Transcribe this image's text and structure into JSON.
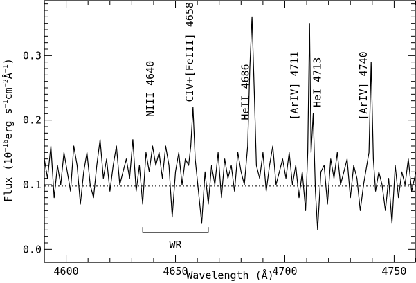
{
  "chart_data": {
    "type": "line",
    "xlabel": "Wavelength (Å)",
    "ylabel": {
      "main": "Flux (10",
      "exp1": "−16",
      "mid1": "erg s",
      "exp2": "−1",
      "mid2": "cm",
      "exp3": "−2",
      "mid3": "Å",
      "exp4": "−1",
      "end": ")"
    },
    "xlim": [
      4590,
      4760
    ],
    "ylim": [
      -0.02,
      0.385
    ],
    "x_ticks": [
      4600,
      4650,
      4700,
      4750
    ],
    "x_tick_labels": [
      "4600",
      "4650",
      "4700",
      "4750"
    ],
    "y_ticks": [
      0.0,
      0.1,
      0.2,
      0.3
    ],
    "y_tick_labels": [
      "0.0",
      "0.1",
      "0.2",
      "0.3"
    ],
    "continuum_level": 0.098,
    "grid": false,
    "series": [
      {
        "x": [
          4590,
          4591.5,
          4593,
          4594.5,
          4596,
          4597.5,
          4599,
          4600.5,
          4602,
          4603.5,
          4605,
          4606.5,
          4608,
          4609.5,
          4611,
          4612.5,
          4614,
          4615.5,
          4617,
          4618.5,
          4620,
          4621.5,
          4623,
          4624.5,
          4626,
          4627.5,
          4629,
          4630.5,
          4632,
          4633.5,
          4635,
          4636.5,
          4638,
          4639.5,
          4641,
          4642.5,
          4644,
          4645.5,
          4647,
          4648.5,
          4650,
          4651.5,
          4653,
          4654.5,
          4656,
          4657,
          4658,
          4659,
          4660.5,
          4662,
          4663.5,
          4665,
          4666.5,
          4668,
          4669.5,
          4671,
          4672.5,
          4674,
          4675.5,
          4677,
          4678.5,
          4680,
          4681.5,
          4683,
          4684,
          4685,
          4686,
          4687,
          4688.5,
          4690,
          4691.5,
          4693,
          4694.5,
          4696,
          4697.5,
          4699,
          4700.5,
          4702,
          4703.5,
          4705,
          4706.5,
          4708,
          4709.5,
          4710.5,
          4711.3,
          4712,
          4713,
          4714,
          4715,
          4716.5,
          4718,
          4719.5,
          4721,
          4722.5,
          4724,
          4725.5,
          4727,
          4728.5,
          4730,
          4731.5,
          4733,
          4734.5,
          4736,
          4737.5,
          4738.5,
          4739.5,
          4740.5,
          4741.5,
          4743,
          4744.5,
          4746,
          4747.5,
          4749,
          4750.5,
          4752,
          4753.5,
          4755,
          4756.5,
          4758,
          4760
        ],
        "y": [
          0.14,
          0.11,
          0.16,
          0.08,
          0.13,
          0.1,
          0.15,
          0.12,
          0.09,
          0.16,
          0.13,
          0.07,
          0.12,
          0.15,
          0.1,
          0.08,
          0.13,
          0.17,
          0.11,
          0.14,
          0.09,
          0.13,
          0.16,
          0.1,
          0.12,
          0.14,
          0.11,
          0.17,
          0.09,
          0.13,
          0.07,
          0.15,
          0.12,
          0.16,
          0.13,
          0.15,
          0.11,
          0.16,
          0.13,
          0.05,
          0.12,
          0.15,
          0.1,
          0.14,
          0.13,
          0.16,
          0.22,
          0.14,
          0.09,
          0.04,
          0.12,
          0.07,
          0.13,
          0.1,
          0.15,
          0.08,
          0.14,
          0.11,
          0.13,
          0.09,
          0.15,
          0.12,
          0.1,
          0.16,
          0.28,
          0.36,
          0.25,
          0.13,
          0.11,
          0.15,
          0.09,
          0.13,
          0.16,
          0.1,
          0.12,
          0.14,
          0.11,
          0.15,
          0.1,
          0.13,
          0.08,
          0.12,
          0.06,
          0.15,
          0.35,
          0.15,
          0.21,
          0.09,
          0.03,
          0.12,
          0.13,
          0.07,
          0.14,
          0.11,
          0.15,
          0.1,
          0.12,
          0.14,
          0.08,
          0.13,
          0.11,
          0.06,
          0.1,
          0.13,
          0.15,
          0.29,
          0.14,
          0.09,
          0.12,
          0.1,
          0.06,
          0.11,
          0.04,
          0.13,
          0.08,
          0.12,
          0.1,
          0.14,
          0.09,
          0.12
        ]
      }
    ],
    "line_labels": [
      {
        "text": "NIII 4640",
        "x": 4640,
        "y": 0.205
      },
      {
        "text": "CIV+[FeIII] 4658",
        "x": 4658,
        "y": 0.228
      },
      {
        "text": "HeII 4686",
        "x": 4683.5,
        "y": 0.2
      },
      {
        "text": "[ArIV] 4711",
        "x": 4706,
        "y": 0.2
      },
      {
        "text": "HeI 4713",
        "x": 4716.5,
        "y": 0.22
      },
      {
        "text": "[ArIV] 4740",
        "x": 4737.5,
        "y": 0.2
      }
    ],
    "bracket": {
      "label": "WR",
      "x_start": 4635,
      "x_end": 4665,
      "y": 0.026
    }
  }
}
